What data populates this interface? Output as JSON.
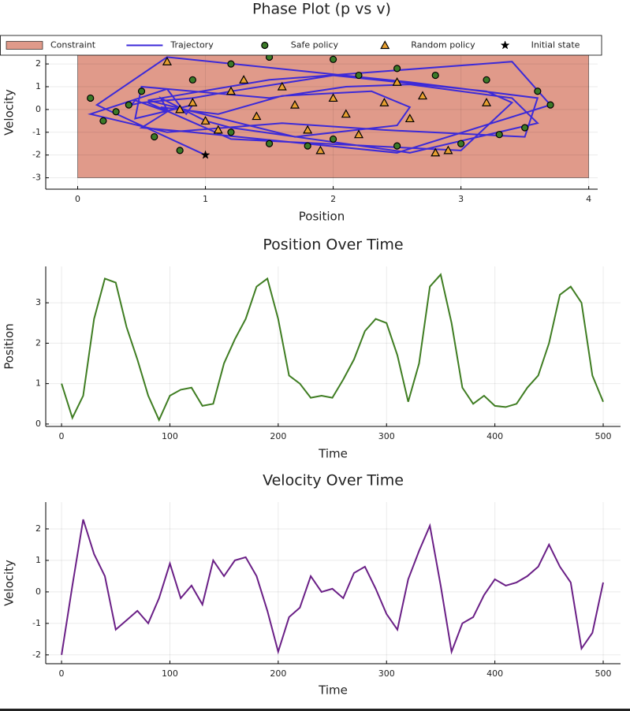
{
  "chart_data": [
    {
      "type": "scatter",
      "title": "Phase Plot (p vs v)",
      "xlabel": "Position",
      "ylabel": "Velocity",
      "xlim": [
        -0.25,
        4.07
      ],
      "ylim": [
        -3.5,
        3.25
      ],
      "xticks": [
        0,
        1,
        2,
        3,
        4
      ],
      "yticks": [
        -3,
        -2,
        -1,
        0,
        1,
        2
      ],
      "grid": true,
      "legend": "top",
      "series": [
        {
          "name": "Constraint",
          "color": "#e09a8a",
          "marker": "area",
          "x": [
            0,
            4
          ],
          "y": [
            -3,
            3
          ]
        },
        {
          "name": "Trajectory",
          "color": "#3c2ad8",
          "marker": "line",
          "x": [
            1.0,
            0.15,
            0.7,
            2.6,
            3.6,
            3.5,
            2.4,
            1.6,
            0.7,
            0.1,
            0.7,
            0.85,
            0.9,
            0.45,
            0.5,
            1.5,
            2.1,
            2.6,
            3.4,
            3.6,
            2.6,
            1.2,
            1.0,
            0.65,
            0.7,
            0.65,
            1.1,
            1.6,
            2.3,
            2.6,
            2.5,
            1.7,
            0.55,
            1.5,
            3.4,
            3.7,
            2.5,
            0.9,
            0.5,
            0.7,
            0.45,
            0.42,
            0.5,
            0.9,
            1.2,
            2.0,
            3.2,
            3.4,
            3.0,
            1.2,
            0.55
          ],
          "y": [
            -2.0,
            0.2,
            2.3,
            1.2,
            0.5,
            -1.2,
            -0.9,
            -0.6,
            -1.0,
            -0.2,
            0.9,
            -0.2,
            0.2,
            -0.4,
            1.0,
            0.5,
            1.0,
            1.1,
            0.5,
            -0.6,
            -1.9,
            -0.8,
            -0.5,
            0.5,
            0.0,
            0.1,
            -0.2,
            0.6,
            0.8,
            0.1,
            -0.7,
            -1.2,
            0.4,
            1.3,
            2.1,
            0.2,
            -1.9,
            -1.0,
            -0.8,
            -0.1,
            0.4,
            0.2,
            0.3,
            0.5,
            0.8,
            1.5,
            0.8,
            0.3,
            -1.8,
            -1.3,
            0.3
          ]
        },
        {
          "name": "Safe policy",
          "color": "#3b7a28",
          "marker": "circle",
          "x": [
            0.1,
            0.2,
            0.5,
            0.6,
            0.8,
            1.2,
            1.5,
            2.0,
            2.5,
            3.0,
            3.5,
            3.7,
            3.6,
            3.2,
            2.8,
            2.5,
            2.0,
            1.5,
            1.2,
            0.9,
            0.4,
            0.3,
            3.3,
            1.8,
            2.2
          ],
          "y": [
            0.5,
            -0.5,
            0.8,
            -1.2,
            -1.8,
            -1.0,
            -1.5,
            -1.3,
            -1.6,
            -1.5,
            -0.8,
            0.2,
            0.8,
            1.3,
            1.5,
            1.8,
            2.2,
            2.3,
            2.0,
            1.3,
            0.2,
            -0.1,
            -1.1,
            -1.6,
            1.5
          ]
        },
        {
          "name": "Random policy",
          "color": "#e8a030",
          "marker": "triangle",
          "x": [
            0.9,
            1.0,
            1.2,
            1.4,
            1.6,
            1.8,
            2.0,
            2.2,
            2.4,
            2.6,
            2.8,
            0.7,
            1.1,
            1.3,
            1.7,
            2.1,
            2.5,
            2.7,
            3.2,
            0.8,
            2.9,
            1.9
          ],
          "y": [
            0.3,
            -0.5,
            0.8,
            -0.3,
            1.0,
            -0.9,
            0.5,
            -1.1,
            0.3,
            -0.4,
            -1.9,
            2.1,
            -0.9,
            1.3,
            0.2,
            -0.2,
            1.2,
            0.6,
            0.3,
            0.0,
            -1.8,
            -1.8
          ]
        },
        {
          "name": "Initial state",
          "color": "#000000",
          "marker": "star",
          "x": [
            1
          ],
          "y": [
            -2
          ]
        }
      ]
    },
    {
      "type": "line",
      "title": "Position Over Time",
      "xlabel": "Time",
      "ylabel": "Position",
      "xlim": [
        -14.6,
        516
      ],
      "ylim": [
        -0.06,
        3.9
      ],
      "xticks": [
        0,
        100,
        200,
        300,
        400,
        500
      ],
      "yticks": [
        0,
        1,
        2,
        3
      ],
      "grid": true,
      "series": [
        {
          "color": "#3f7d22",
          "x": [
            0,
            10,
            20,
            30,
            40,
            50,
            60,
            70,
            80,
            90,
            100,
            110,
            120,
            130,
            140,
            150,
            160,
            170,
            180,
            190,
            200,
            210,
            220,
            230,
            240,
            250,
            260,
            270,
            280,
            290,
            300,
            310,
            320,
            330,
            340,
            350,
            360,
            370,
            380,
            390,
            400,
            410,
            420,
            430,
            440,
            450,
            460,
            470,
            480,
            490,
            500
          ],
          "values": [
            1.0,
            0.15,
            0.7,
            2.6,
            3.6,
            3.5,
            2.4,
            1.6,
            0.7,
            0.1,
            0.7,
            0.85,
            0.9,
            0.45,
            0.5,
            1.5,
            2.1,
            2.6,
            3.4,
            3.6,
            2.6,
            1.2,
            1.0,
            0.65,
            0.7,
            0.65,
            1.1,
            1.6,
            2.3,
            2.6,
            2.5,
            1.7,
            0.55,
            1.5,
            3.4,
            3.7,
            2.5,
            0.9,
            0.5,
            0.7,
            0.45,
            0.42,
            0.5,
            0.9,
            1.2,
            2.0,
            3.2,
            3.4,
            3.0,
            1.2,
            0.55
          ]
        }
      ]
    },
    {
      "type": "line",
      "title": "Velocity Over Time",
      "xlabel": "Time",
      "ylabel": "Velocity",
      "xlim": [
        -14.6,
        516
      ],
      "ylim": [
        -2.28,
        2.85
      ],
      "xticks": [
        0,
        100,
        200,
        300,
        400,
        500
      ],
      "yticks": [
        -2,
        -1,
        0,
        1,
        2
      ],
      "grid": true,
      "series": [
        {
          "color": "#6a1f86",
          "x": [
            0,
            10,
            20,
            30,
            40,
            50,
            60,
            70,
            80,
            90,
            100,
            110,
            120,
            130,
            140,
            150,
            160,
            170,
            180,
            190,
            200,
            210,
            220,
            230,
            240,
            250,
            260,
            270,
            280,
            290,
            300,
            310,
            320,
            330,
            340,
            350,
            360,
            370,
            380,
            390,
            400,
            410,
            420,
            430,
            440,
            450,
            460,
            470,
            480,
            490,
            500
          ],
          "values": [
            -2.0,
            0.2,
            2.3,
            1.2,
            0.5,
            -1.2,
            -0.9,
            -0.6,
            -1.0,
            -0.2,
            0.9,
            -0.2,
            0.2,
            -0.4,
            1.0,
            0.5,
            1.0,
            1.1,
            0.5,
            -0.6,
            -1.9,
            -0.8,
            -0.5,
            0.5,
            0.0,
            0.1,
            -0.2,
            0.6,
            0.8,
            0.1,
            -0.7,
            -1.2,
            0.4,
            1.3,
            2.1,
            0.2,
            -1.9,
            -1.0,
            -0.8,
            -0.1,
            0.4,
            0.2,
            0.3,
            0.5,
            0.8,
            1.5,
            0.8,
            0.3,
            -1.8,
            -1.3,
            0.3
          ]
        }
      ]
    }
  ]
}
